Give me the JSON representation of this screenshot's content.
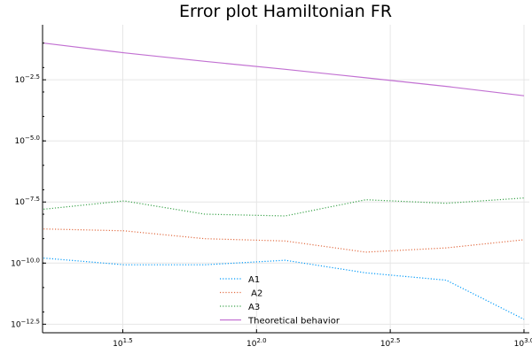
{
  "chart_data": {
    "type": "line",
    "title": "Error plot Hamiltonian FR",
    "xlabel": "",
    "ylabel": "",
    "x_scale": "log10",
    "y_scale": "log10",
    "xlim": [
      10,
      1000
    ],
    "ylim": [
      1e-13,
      1.0
    ],
    "grid": true,
    "legend_position": "bottom-center",
    "x_ticks": [
      {
        "base": "10",
        "exp": "1.5",
        "value": 31.62
      },
      {
        "base": "10",
        "exp": "2.0",
        "value": 100
      },
      {
        "base": "10",
        "exp": "2.5",
        "value": 316.2
      },
      {
        "base": "10",
        "exp": "3.0",
        "value": 1000
      }
    ],
    "y_ticks": [
      {
        "base": "10",
        "exp": "−2.5",
        "value": 0.003162
      },
      {
        "base": "10",
        "exp": "−5.0",
        "value": 1e-05
      },
      {
        "base": "10",
        "exp": "−7.5",
        "value": 3.162e-08
      },
      {
        "base": "10",
        "exp": "−10.0",
        "value": 1e-10
      },
      {
        "base": "10",
        "exp": "−12.5",
        "value": 3.162e-13
      }
    ],
    "x": [
      16,
      32,
      64,
      128,
      256,
      512,
      1000
    ],
    "series": [
      {
        "name": "A1",
        "color": "#009af9",
        "style": "dotted",
        "y": [
          1.6e-10,
          8.5e-11,
          8.5e-11,
          1.3e-10,
          4e-11,
          2e-11,
          5e-13
        ]
      },
      {
        "name": " A2",
        "color": "#e26f46",
        "style": "dotted",
        "y": [
          2.5e-09,
          2.1e-09,
          1e-09,
          8e-10,
          2.8e-10,
          4.2e-10,
          9e-10
        ]
      },
      {
        "name": "A3",
        "color": "#3da44d",
        "style": "dotted",
        "y": [
          1.6e-08,
          3.5e-08,
          1e-08,
          8.5e-09,
          3.9e-08,
          2.8e-08,
          4.6e-08
        ]
      },
      {
        "name": "Theoretical behavior",
        "color": "#c271d2",
        "style": "solid",
        "y": [
          0.1,
          0.04,
          0.018,
          0.0085,
          0.0038,
          0.0017,
          0.0007
        ]
      }
    ]
  }
}
